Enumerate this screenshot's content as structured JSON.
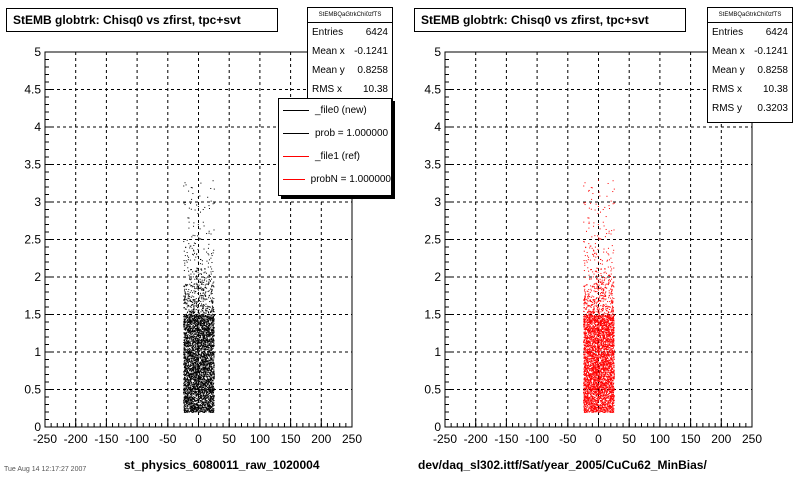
{
  "chart_data": [
    {
      "type": "scatter",
      "title": "StEMB globtrk: Chisq0 vs zfirst, tpc+svt",
      "xlabel": "st_physics_6080011_raw_1020004",
      "ylabel": "",
      "xlim": [
        -250,
        250
      ],
      "ylim": [
        0,
        5
      ],
      "x_ticks": [
        "-250",
        "-200",
        "-150",
        "-100",
        "-50",
        "0",
        "50",
        "100",
        "150",
        "200",
        "250"
      ],
      "y_ticks": [
        "0",
        "0.5",
        "1",
        "1.5",
        "2",
        "2.5",
        "3",
        "3.5",
        "4",
        "4.5",
        "5"
      ],
      "grid": true,
      "point_color": "#000000",
      "distribution": {
        "x_center": 0,
        "x_half_width": 25,
        "y_core": [
          0.2,
          1.5
        ],
        "y_tail_max": 3.3
      },
      "stats": {
        "name": "StEMBQaGtrkChi0zfTS",
        "entries": {
          "label": "Entries",
          "value": "6424"
        },
        "mean_x": {
          "label": "Mean x",
          "value": "-0.1241"
        },
        "mean_y": {
          "label": "Mean y",
          "value": "0.8258"
        },
        "rms_x": {
          "label": "RMS x",
          "value": "10.38"
        }
      },
      "legend": [
        {
          "label": "_file0 (new)",
          "color": "#000000"
        },
        {
          "label": "prob = 1.000000",
          "color": "#000000"
        },
        {
          "label": "_file1 (ref)",
          "color": "#ff0000"
        },
        {
          "label": "probN = 1.000000",
          "color": "#ff0000"
        }
      ],
      "corner_note": "Tue Aug 14 12:17:27 2007"
    },
    {
      "type": "scatter",
      "title": "StEMB globtrk: Chisq0 vs zfirst, tpc+svt",
      "xlabel": "dev/daq_sl302.ittf/Sat/year_2005/CuCu62_MinBias/",
      "ylabel": "",
      "xlim": [
        -250,
        250
      ],
      "ylim": [
        0,
        5
      ],
      "x_ticks": [
        "-250",
        "-200",
        "-150",
        "-100",
        "-50",
        "0",
        "50",
        "100",
        "150",
        "200",
        "250"
      ],
      "y_ticks": [
        "0",
        "0.5",
        "1",
        "1.5",
        "2",
        "2.5",
        "3",
        "3.5",
        "4",
        "4.5",
        "5"
      ],
      "grid": true,
      "point_color": "#ff0000",
      "distribution": {
        "x_center": 0,
        "x_half_width": 25,
        "y_core": [
          0.2,
          1.5
        ],
        "y_tail_max": 3.3
      },
      "stats": {
        "name": "StEMBQaGtrkChi0zfTS",
        "entries": {
          "label": "Entries",
          "value": "6424"
        },
        "mean_x": {
          "label": "Mean x",
          "value": "-0.1241"
        },
        "mean_y": {
          "label": "Mean y",
          "value": "0.8258"
        },
        "rms_x": {
          "label": "RMS x",
          "value": "10.38"
        },
        "rms_y": {
          "label": "RMS y",
          "value": "0.3203"
        }
      }
    }
  ]
}
